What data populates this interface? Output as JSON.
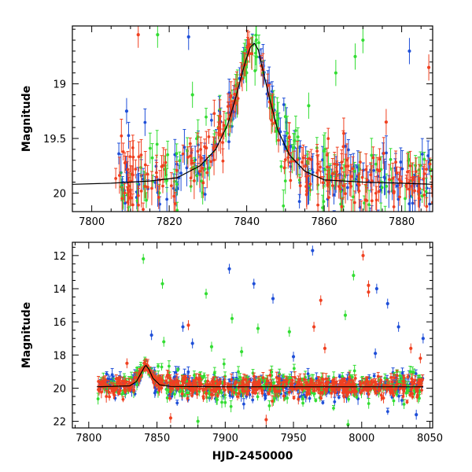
{
  "chart_data": [
    {
      "type": "scatter",
      "title": "",
      "xlabel": "",
      "ylabel": "Magnitude",
      "xlim": [
        7795,
        7888
      ],
      "ylim": [
        20.17,
        18.47
      ],
      "y_inverted": true,
      "grid": false,
      "x_ticks": [
        7800,
        7820,
        7840,
        7860,
        7880
      ],
      "x_tick_labels": [
        "7800",
        "7820",
        "7840",
        "7860",
        "7880"
      ],
      "y_ticks": [
        19,
        19.5,
        20
      ],
      "y_tick_labels": [
        "19",
        "19.5",
        "20"
      ],
      "model_curve": {
        "color": "#000000",
        "x": [
          7795,
          7805,
          7815,
          7822,
          7828,
          7832,
          7835,
          7837,
          7839,
          7840,
          7841,
          7842,
          7843,
          7844,
          7846,
          7848,
          7851,
          7855,
          7860,
          7870,
          7880,
          7888
        ],
        "y": [
          19.92,
          19.91,
          19.89,
          19.86,
          19.75,
          19.6,
          19.38,
          19.15,
          18.88,
          18.76,
          18.66,
          18.63,
          18.69,
          18.85,
          19.15,
          19.42,
          19.65,
          19.8,
          19.88,
          19.9,
          19.91,
          19.92
        ]
      },
      "series": [
        {
          "color": "#1f4fd8",
          "x_range": [
            7806,
            7888
          ],
          "scatter_sd": 0.17
        },
        {
          "color": "#33dd33",
          "x_range": [
            7806,
            7888
          ],
          "scatter_sd": 0.2
        },
        {
          "color": "#f04020",
          "x_range": [
            7806,
            7888
          ],
          "scatter_sd": 0.15
        }
      ],
      "outliers": [
        {
          "x": 7812,
          "y": 18.55,
          "color": "#f04020"
        },
        {
          "x": 7817,
          "y": 18.55,
          "color": "#33dd33"
        },
        {
          "x": 7825,
          "y": 18.57,
          "color": "#1f4fd8"
        },
        {
          "x": 7809,
          "y": 19.25,
          "color": "#1f4fd8"
        },
        {
          "x": 7826,
          "y": 19.1,
          "color": "#33dd33"
        },
        {
          "x": 7863,
          "y": 18.9,
          "color": "#33dd33"
        },
        {
          "x": 7868,
          "y": 18.75,
          "color": "#33dd33"
        },
        {
          "x": 7870,
          "y": 18.6,
          "color": "#33dd33"
        },
        {
          "x": 7882,
          "y": 18.7,
          "color": "#1f4fd8"
        },
        {
          "x": 7887,
          "y": 18.85,
          "color": "#f04020"
        },
        {
          "x": 7850,
          "y": 19.3,
          "color": "#33dd33"
        },
        {
          "x": 7856,
          "y": 19.2,
          "color": "#33dd33"
        },
        {
          "x": 7876,
          "y": 19.35,
          "color": "#f04020"
        }
      ]
    },
    {
      "type": "scatter",
      "title": "",
      "xlabel": "HJD-2450000",
      "ylabel": "Magnitude",
      "xlim": [
        7788,
        8052
      ],
      "ylim": [
        22.4,
        11.2
      ],
      "y_inverted": true,
      "grid": false,
      "x_ticks": [
        7800,
        7850,
        7900,
        7950,
        8000,
        8050
      ],
      "x_tick_labels": [
        "7800",
        "7850",
        "7900",
        "7950",
        "8000",
        "8050"
      ],
      "y_ticks": [
        12,
        14,
        16,
        18,
        20,
        22
      ],
      "y_tick_labels": [
        "12",
        "14",
        "16",
        "18",
        "20",
        "22"
      ],
      "model_curve": {
        "color": "#000000",
        "x": [
          7806,
          7830,
          7835,
          7838,
          7841,
          7842,
          7844,
          7847,
          7852,
          7860,
          7900,
          7950,
          8000,
          8045
        ],
        "y": [
          19.92,
          19.86,
          19.6,
          19.15,
          18.7,
          18.63,
          18.85,
          19.4,
          19.8,
          19.9,
          19.92,
          19.92,
          19.92,
          19.92
        ]
      },
      "series": [
        {
          "color": "#1f4fd8",
          "x_range": [
            7806,
            8045
          ],
          "scatter_sd": 0.35
        },
        {
          "color": "#33dd33",
          "x_range": [
            7806,
            8045
          ],
          "scatter_sd": 0.45
        },
        {
          "color": "#f04020",
          "x_range": [
            7806,
            8045
          ],
          "scatter_sd": 0.3
        }
      ],
      "outliers": [
        {
          "x": 7840,
          "y": 12.2,
          "color": "#33dd33"
        },
        {
          "x": 7854,
          "y": 13.7,
          "color": "#33dd33"
        },
        {
          "x": 7886,
          "y": 14.3,
          "color": "#33dd33"
        },
        {
          "x": 7903,
          "y": 12.8,
          "color": "#1f4fd8"
        },
        {
          "x": 7921,
          "y": 13.7,
          "color": "#1f4fd8"
        },
        {
          "x": 7935,
          "y": 14.6,
          "color": "#1f4fd8"
        },
        {
          "x": 7964,
          "y": 11.7,
          "color": "#1f4fd8"
        },
        {
          "x": 7970,
          "y": 14.7,
          "color": "#f04020"
        },
        {
          "x": 7988,
          "y": 15.6,
          "color": "#33dd33"
        },
        {
          "x": 7994,
          "y": 13.2,
          "color": "#33dd33"
        },
        {
          "x": 8001,
          "y": 12.0,
          "color": "#f04020"
        },
        {
          "x": 8005,
          "y": 13.8,
          "color": "#f04020"
        },
        {
          "x": 8005,
          "y": 14.2,
          "color": "#f04020"
        },
        {
          "x": 8011,
          "y": 14.0,
          "color": "#1f4fd8"
        },
        {
          "x": 8019,
          "y": 14.9,
          "color": "#1f4fd8"
        },
        {
          "x": 8027,
          "y": 16.3,
          "color": "#1f4fd8"
        },
        {
          "x": 7905,
          "y": 15.8,
          "color": "#33dd33"
        },
        {
          "x": 7924,
          "y": 16.4,
          "color": "#33dd33"
        },
        {
          "x": 7947,
          "y": 16.6,
          "color": "#33dd33"
        },
        {
          "x": 7965,
          "y": 16.3,
          "color": "#f04020"
        },
        {
          "x": 7973,
          "y": 17.6,
          "color": "#f04020"
        },
        {
          "x": 7869,
          "y": 16.3,
          "color": "#1f4fd8"
        },
        {
          "x": 7873,
          "y": 16.2,
          "color": "#f04020"
        },
        {
          "x": 7876,
          "y": 17.3,
          "color": "#1f4fd8"
        },
        {
          "x": 7846,
          "y": 16.8,
          "color": "#1f4fd8"
        },
        {
          "x": 7855,
          "y": 17.2,
          "color": "#33dd33"
        },
        {
          "x": 8036,
          "y": 17.6,
          "color": "#f04020"
        },
        {
          "x": 8045,
          "y": 17.0,
          "color": "#1f4fd8"
        },
        {
          "x": 8043,
          "y": 18.2,
          "color": "#f04020"
        },
        {
          "x": 8010,
          "y": 17.9,
          "color": "#1f4fd8"
        },
        {
          "x": 7828,
          "y": 18.5,
          "color": "#f04020"
        },
        {
          "x": 7890,
          "y": 17.5,
          "color": "#33dd33"
        },
        {
          "x": 7912,
          "y": 17.8,
          "color": "#33dd33"
        },
        {
          "x": 7950,
          "y": 18.1,
          "color": "#1f4fd8"
        },
        {
          "x": 7880,
          "y": 22.0,
          "color": "#33dd33"
        },
        {
          "x": 7930,
          "y": 21.9,
          "color": "#f04020"
        },
        {
          "x": 7990,
          "y": 22.2,
          "color": "#33dd33"
        },
        {
          "x": 8040,
          "y": 21.6,
          "color": "#1f4fd8"
        },
        {
          "x": 7860,
          "y": 21.8,
          "color": "#f04020"
        }
      ]
    }
  ]
}
